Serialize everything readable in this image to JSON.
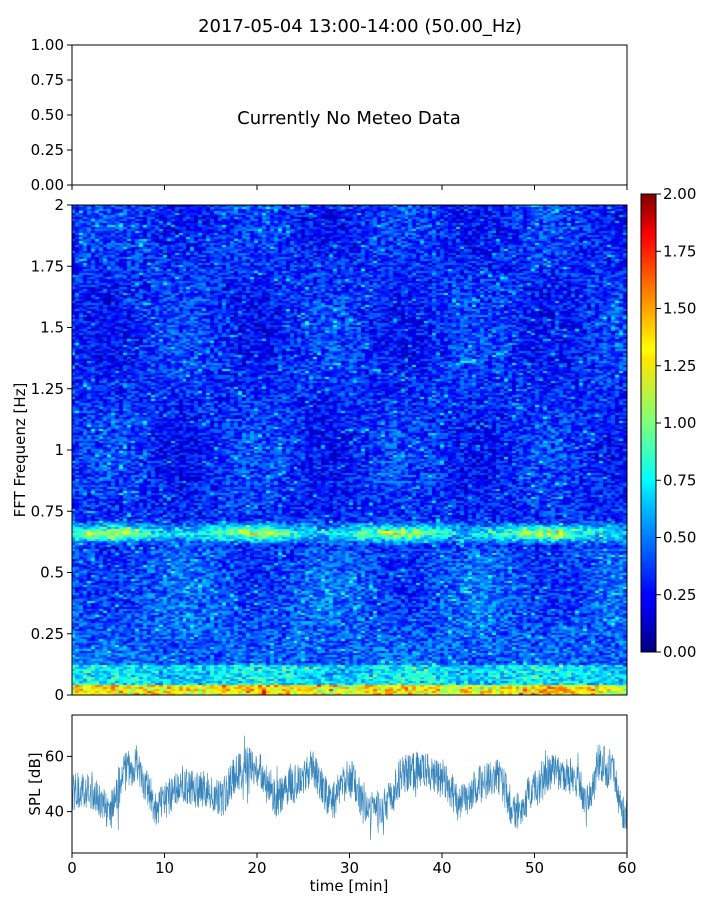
{
  "title": "2017-05-04 13:00-14:00 (50.00_Hz)",
  "chart_data": [
    {
      "name": "meteo-panel",
      "type": "line",
      "message": "Currently No Meteo Data",
      "ylim": [
        0,
        1
      ],
      "yticks": [
        "0.00",
        "0.25",
        "0.50",
        "0.75",
        "1.00"
      ],
      "xlim": [
        0,
        60
      ],
      "series": []
    },
    {
      "name": "spectrogram",
      "type": "heatmap",
      "ylabel": "FFT Frequenz [Hz]",
      "xlim": [
        0,
        60
      ],
      "ylim": [
        0,
        2
      ],
      "yticks": [
        "0",
        "0.25",
        "0.5",
        "0.75",
        "1",
        "1.25",
        "1.5",
        "1.75",
        "2"
      ],
      "colormap": "jet",
      "colorbar": {
        "range": [
          0,
          2
        ],
        "ticks": [
          "0.00",
          "0.25",
          "0.50",
          "0.75",
          "1.00",
          "1.25",
          "1.50",
          "1.75",
          "2.00"
        ]
      },
      "features": [
        {
          "band_hz": [
            0,
            0.03
          ],
          "level": 1.9
        },
        {
          "band_hz": [
            0.62,
            0.7
          ],
          "level": 1.3
        }
      ]
    },
    {
      "name": "spl-panel",
      "type": "line",
      "xlabel": "time [min]",
      "ylabel": "SPL [dB]",
      "xlim": [
        0,
        60
      ],
      "ylim": [
        25,
        75
      ],
      "xticks": [
        "0",
        "10",
        "20",
        "30",
        "40",
        "50",
        "60"
      ],
      "yticks": [
        "40",
        "60"
      ],
      "color": "#1f77b4",
      "trend": {
        "t": [
          0,
          2,
          4,
          6,
          7,
          8,
          9,
          10,
          12,
          14,
          16,
          18,
          19,
          20,
          22,
          24,
          26,
          28,
          30,
          32,
          34,
          36,
          38,
          40,
          42,
          44,
          46,
          48,
          50,
          52,
          54,
          56,
          57,
          58,
          60
        ],
        "db": [
          47,
          48,
          40,
          55,
          58,
          50,
          42,
          44,
          50,
          48,
          45,
          54,
          57,
          55,
          45,
          50,
          55,
          44,
          52,
          40,
          43,
          54,
          55,
          52,
          43,
          50,
          52,
          40,
          48,
          55,
          53,
          44,
          58,
          56,
          38
        ]
      }
    }
  ]
}
